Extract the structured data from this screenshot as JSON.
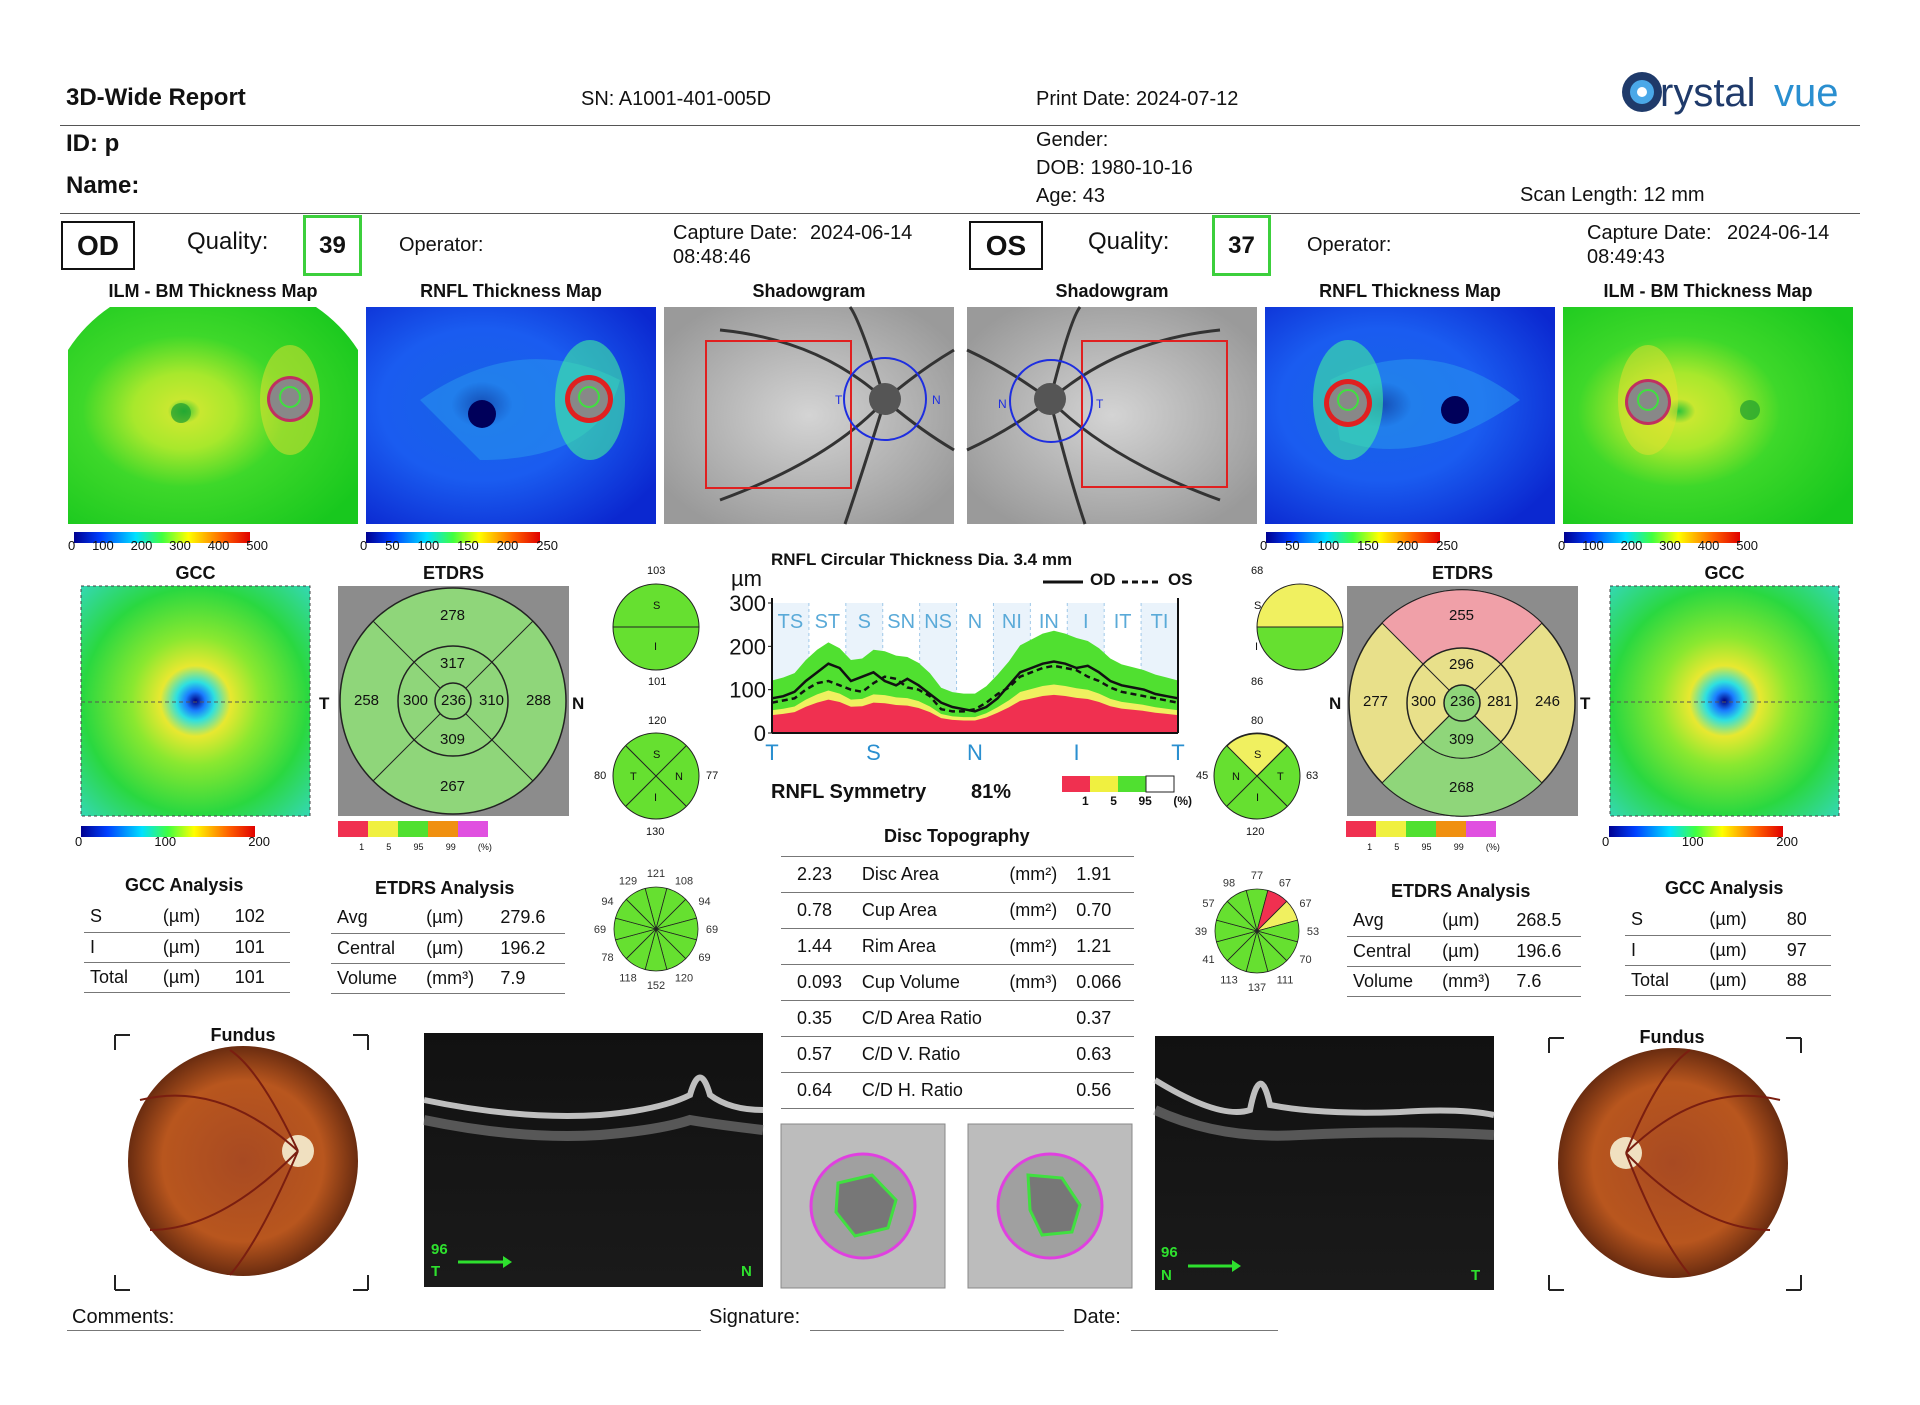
{
  "header": {
    "report_title": "3D-Wide Report",
    "serial": "SN: A1001-401-005D",
    "print_date": "Print Date: 2024-07-12",
    "logo_text": "Crystalvue",
    "id_label": "ID: p",
    "name_label": "Name:",
    "gender_label": "Gender:",
    "dob_label": "DOB: 1980-10-16",
    "age_label": "Age: 43",
    "scan_length": "Scan Length: 12 mm"
  },
  "od": {
    "eye": "OD",
    "quality_label": "Quality:",
    "quality": "39",
    "operator_label": "Operator:",
    "capture_label": "Capture Date:",
    "capture_date": "2024-06-14",
    "capture_time": "08:48:46",
    "map_titles": [
      "ILM - BM Thickness Map",
      "RNFL Thickness Map",
      "Shadowgram"
    ],
    "ilm_scale": [
      "0",
      "100",
      "200",
      "300",
      "400",
      "500"
    ],
    "rnfl_scale": [
      "0",
      "50",
      "100",
      "150",
      "200",
      "250"
    ],
    "gcc_title": "GCC",
    "gcc_scale": [
      "0",
      "100",
      "200"
    ],
    "etdrs_title": "ETDRS",
    "etdrs": {
      "outer_s": "278",
      "inner_s": "317",
      "outer_t": "258",
      "inner_t": "300",
      "center": "236",
      "inner_n": "310",
      "outer_n": "288",
      "inner_i": "309",
      "outer_i": "267",
      "left_dir": "T",
      "right_dir": "N"
    },
    "shadow_dirs": {
      "left": "T",
      "right": "N"
    },
    "half": {
      "top": "103",
      "bottom": "101",
      "s": "S",
      "i": "I"
    },
    "quad": {
      "top": "120",
      "left": "80",
      "right": "77",
      "bottom": "130",
      "s": "S",
      "t": "T",
      "n": "N",
      "i": "I"
    },
    "clock": [
      "121",
      "108",
      "94",
      "69",
      "69",
      "120",
      "152",
      "118",
      "78",
      "69",
      "94",
      "129"
    ],
    "gcc_analysis": {
      "title": "GCC Analysis",
      "rows": [
        [
          "S",
          "(µm)",
          "102"
        ],
        [
          "I",
          "(µm)",
          "101"
        ],
        [
          "Total",
          "(µm)",
          "101"
        ]
      ]
    },
    "etdrs_analysis": {
      "title": "ETDRS Analysis",
      "rows": [
        [
          "Avg",
          "(µm)",
          "279.6"
        ],
        [
          "Central",
          "(µm)",
          "196.2"
        ],
        [
          "Volume",
          "(mm³)",
          "7.9"
        ]
      ]
    },
    "fundus_title": "Fundus",
    "bscan_num": "96",
    "bscan_left": "T",
    "bscan_right": "N"
  },
  "os": {
    "eye": "OS",
    "quality_label": "Quality:",
    "quality": "37",
    "operator_label": "Operator:",
    "capture_label": "Capture Date:",
    "capture_date": "2024-06-14",
    "capture_time": "08:49:43",
    "map_titles": [
      "Shadowgram",
      "RNFL Thickness Map",
      "ILM - BM Thickness Map"
    ],
    "ilm_scale": [
      "0",
      "100",
      "200",
      "300",
      "400",
      "500"
    ],
    "rnfl_scale": [
      "0",
      "50",
      "100",
      "150",
      "200",
      "250"
    ],
    "gcc_title": "GCC",
    "gcc_scale": [
      "0",
      "100",
      "200"
    ],
    "etdrs_title": "ETDRS",
    "etdrs": {
      "outer_s": "255",
      "inner_s": "296",
      "outer_t": "246",
      "inner_t": "281",
      "center": "236",
      "inner_n": "300",
      "outer_n": "277",
      "inner_i": "309",
      "outer_i": "268",
      "left_dir": "N",
      "right_dir": "T"
    },
    "shadow_dirs": {
      "left": "N",
      "right": "T"
    },
    "half": {
      "top": "68",
      "bottom": "86",
      "s": "S",
      "i": "I"
    },
    "quad": {
      "top": "80",
      "left": "45",
      "right": "63",
      "bottom": "120",
      "s": "S",
      "t": "T",
      "n": "N",
      "i": "I"
    },
    "clock": [
      "77",
      "67",
      "67",
      "53",
      "70",
      "111",
      "137",
      "113",
      "41",
      "39",
      "57",
      "98"
    ],
    "gcc_analysis": {
      "title": "GCC Analysis",
      "rows": [
        [
          "S",
          "(µm)",
          "80"
        ],
        [
          "I",
          "(µm)",
          "97"
        ],
        [
          "Total",
          "(µm)",
          "88"
        ]
      ]
    },
    "etdrs_analysis": {
      "title": "ETDRS Analysis",
      "rows": [
        [
          "Avg",
          "(µm)",
          "268.5"
        ],
        [
          "Central",
          "(µm)",
          "196.6"
        ],
        [
          "Volume",
          "(mm³)",
          "7.6"
        ]
      ]
    },
    "fundus_title": "Fundus",
    "bscan_num": "96",
    "bscan_left": "N",
    "bscan_right": "T"
  },
  "rnfl_chart": {
    "title": "RNFL Circular Thickness Dia. 3.4 mm",
    "unit": "µm",
    "legend_od": "OD",
    "legend_os": "OS",
    "sectors": [
      "TS",
      "ST",
      "S",
      "SN",
      "NS",
      "N",
      "NI",
      "IN",
      "I",
      "IT",
      "TI"
    ],
    "x_ticks": [
      "T",
      "S",
      "N",
      "I",
      "T"
    ],
    "y_ticks": [
      "300",
      "200",
      "100",
      "0"
    ],
    "symmetry_label": "RNFL Symmetry",
    "symmetry_value": "81%",
    "pct_scale": [
      "1",
      "5",
      "95",
      "(%)"
    ]
  },
  "chart_data": {
    "type": "line",
    "title": "RNFL Circular Thickness Dia. 3.4 mm",
    "ylabel": "µm",
    "ylim": [
      0,
      300
    ],
    "x_ticks": [
      "T",
      "S",
      "N",
      "I",
      "T"
    ],
    "x": [
      0,
      10,
      20,
      30,
      40,
      50,
      60,
      70,
      80,
      90,
      100,
      110,
      120,
      130,
      140,
      150,
      160,
      170,
      180,
      190,
      200,
      210,
      220,
      230,
      240,
      250,
      260,
      270,
      280,
      290,
      300,
      310,
      320,
      330,
      340,
      350,
      360
    ],
    "series": [
      {
        "name": "OD",
        "values": [
          80,
          85,
          95,
          120,
          140,
          160,
          150,
          120,
          130,
          140,
          120,
          110,
          125,
          110,
          90,
          70,
          60,
          55,
          50,
          60,
          80,
          110,
          140,
          150,
          160,
          165,
          160,
          150,
          155,
          140,
          120,
          110,
          105,
          100,
          90,
          85,
          80
        ]
      },
      {
        "name": "OS",
        "values": [
          70,
          75,
          80,
          100,
          115,
          120,
          110,
          100,
          95,
          115,
          130,
          125,
          105,
          100,
          85,
          55,
          50,
          50,
          55,
          70,
          90,
          105,
          130,
          140,
          150,
          155,
          150,
          145,
          130,
          120,
          105,
          95,
          90,
          85,
          80,
          75,
          70
        ]
      }
    ],
    "percentile_bands": [
      "1",
      "5",
      "95"
    ]
  },
  "disc": {
    "title": "Disc Topography",
    "rows": [
      [
        "2.23",
        "Disc Area",
        "(mm²)",
        "1.91"
      ],
      [
        "0.78",
        "Cup Area",
        "(mm²)",
        "0.70"
      ],
      [
        "1.44",
        "Rim Area",
        "(mm²)",
        "1.21"
      ],
      [
        "0.093",
        "Cup Volume",
        "(mm³)",
        "0.066"
      ],
      [
        "0.35",
        "C/D Area Ratio",
        "",
        "0.37"
      ],
      [
        "0.57",
        "C/D V. Ratio",
        "",
        "0.63"
      ],
      [
        "0.64",
        "C/D H. Ratio",
        "",
        "0.56"
      ]
    ]
  },
  "footer": {
    "comments": "Comments:",
    "signature": "Signature:",
    "date": "Date:"
  },
  "colors": {
    "quality_border": "#3ccf3c",
    "etdrs_green": "#8fd67a",
    "etdrs_yellow": "#e8e08a",
    "etdrs_red": "#f0a0a8"
  }
}
